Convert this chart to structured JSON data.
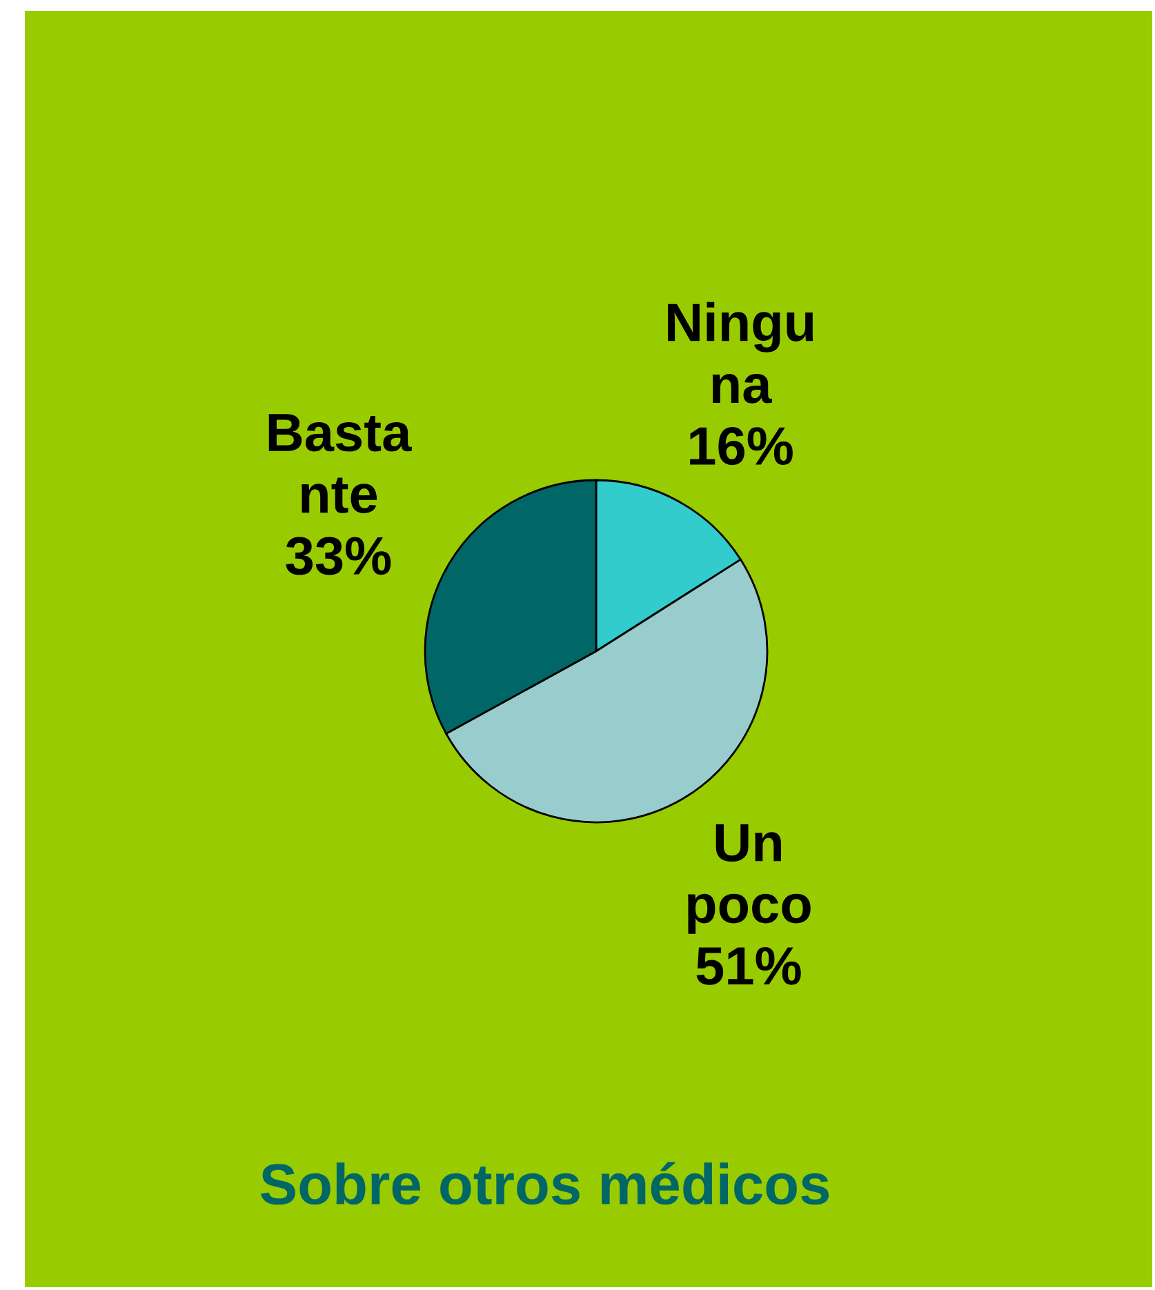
{
  "chart_data": {
    "type": "pie",
    "title": "Sobre otros médicos",
    "categories": [
      "Ningu\nna",
      "Un\npoco",
      "Basta\nnte"
    ],
    "values": [
      16,
      51,
      33
    ],
    "value_labels": [
      "16%",
      "51%",
      "33%"
    ],
    "colors": [
      "#33cccc",
      "#99cccc",
      "#006666"
    ]
  }
}
